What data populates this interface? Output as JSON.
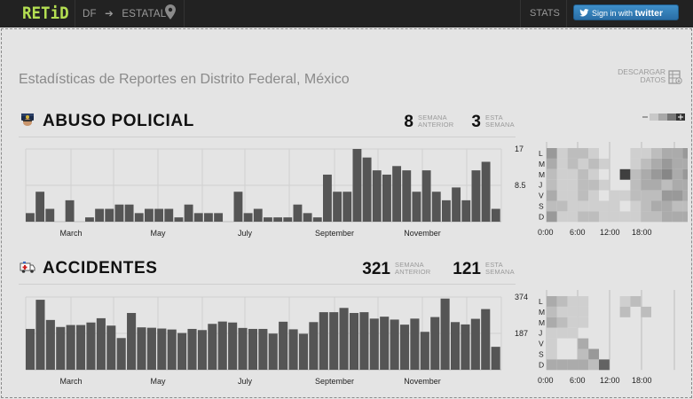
{
  "nav": {
    "logo": "RETiD",
    "region": "DF",
    "arrow": "➔",
    "level": "ESTATAL",
    "stats": "STATS",
    "twitter_prefix": "Sign in with",
    "twitter_brand": "twitter"
  },
  "page": {
    "title": "Estadísticas de Reportes en Distrito Federal, México",
    "download_line1": "DESCARGAR",
    "download_line2": "DATOS"
  },
  "colors": {
    "accent": "#b4df52",
    "bar": "#555555",
    "twitter": "#2f7fbf"
  },
  "sections": [
    {
      "title": "ABUSO POLICIAL",
      "icon": "police-icon",
      "prev_value": "8",
      "prev_label1": "SEMANA",
      "prev_label2": "ANTERIOR",
      "curr_value": "3",
      "curr_label1": "ESTA",
      "curr_label2": "SEMANA",
      "ymax_label": "17",
      "ymid_label": "8.5",
      "months": [
        "March",
        "May",
        "July",
        "September",
        "November"
      ],
      "days": [
        "L",
        "M",
        "M",
        "J",
        "V",
        "S",
        "D"
      ],
      "hours": [
        "0:00",
        "6:00",
        "12:00",
        "18:00"
      ]
    },
    {
      "title": "ACCIDENTES",
      "icon": "ambulance-icon",
      "prev_value": "321",
      "prev_label1": "SEMANA",
      "prev_label2": "ANTERIOR",
      "curr_value": "121",
      "curr_label1": "ESTA",
      "curr_label2": "SEMANA",
      "ymax_label": "374",
      "ymid_label": "187",
      "months": [
        "March",
        "May",
        "July",
        "September",
        "November"
      ],
      "days": [
        "L",
        "M",
        "M",
        "J",
        "V",
        "S",
        "D"
      ],
      "hours": [
        "0:00",
        "6:00",
        "12:00",
        "18:00"
      ]
    }
  ],
  "chart_data": [
    {
      "type": "bar",
      "title": "ABUSO POLICIAL",
      "ylim": [
        0,
        17
      ],
      "ytick_labels": [
        "17",
        "8.5"
      ],
      "xtick_labels": [
        "March",
        "May",
        "July",
        "September",
        "November"
      ],
      "values": [
        2,
        7,
        3,
        0,
        5,
        0,
        1,
        3,
        3,
        4,
        4,
        2,
        3,
        3,
        3,
        1,
        4,
        2,
        2,
        2,
        0,
        7,
        2,
        3,
        1,
        1,
        1,
        4,
        2,
        1,
        11,
        7,
        7,
        17,
        15,
        12,
        11,
        13,
        12,
        7,
        12,
        7,
        5,
        8,
        5,
        12,
        14,
        3
      ]
    },
    {
      "type": "bar",
      "title": "ACCIDENTES",
      "ylim": [
        0,
        374
      ],
      "ytick_labels": [
        "374",
        "187"
      ],
      "xtick_labels": [
        "March",
        "May",
        "July",
        "September",
        "November"
      ],
      "values": [
        210,
        360,
        256,
        220,
        230,
        230,
        243,
        265,
        227,
        163,
        292,
        218,
        216,
        212,
        207,
        189,
        210,
        204,
        236,
        248,
        243,
        215,
        210,
        210,
        186,
        247,
        208,
        185,
        245,
        296,
        296,
        318,
        292,
        296,
        263,
        273,
        258,
        232,
        263,
        195,
        271,
        366,
        245,
        233,
        262,
        312,
        118
      ]
    },
    {
      "type": "heatmap",
      "title": "ABUSO POLICIAL hour/day",
      "rows": [
        "L",
        "M",
        "M",
        "J",
        "V",
        "S",
        "D"
      ],
      "values": [
        [
          0.4,
          0.1,
          0.2,
          0.2,
          0.1,
          0,
          0,
          0,
          0.1,
          0.1,
          0.2,
          0.3,
          0.3,
          0.4,
          0.3,
          0.2,
          0.3,
          0.1,
          0.3
        ],
        [
          0.3,
          0.1,
          0.2,
          0.1,
          0.2,
          0.1,
          0,
          0,
          0.1,
          0.2,
          0.3,
          0.4,
          0.3,
          0.3,
          0.4,
          0.2,
          0.3,
          0.1,
          0.2
        ],
        [
          0.2,
          0.1,
          0.1,
          0.2,
          0.1,
          0,
          0,
          0.9,
          0.2,
          0.3,
          0.4,
          0.5,
          0.3,
          0.4,
          0.2,
          0.3,
          0.3,
          0.2,
          0.2
        ],
        [
          0.2,
          0.1,
          0.1,
          0.2,
          0.2,
          0.1,
          0,
          0,
          0.2,
          0.3,
          0.3,
          0.2,
          0.3,
          0.3,
          0.4,
          0.2,
          0.3,
          0.2,
          0.2
        ],
        [
          0.3,
          0.1,
          0.1,
          0.2,
          0.1,
          0,
          0.1,
          0.1,
          0.2,
          0.2,
          0.2,
          0.4,
          0.4,
          0.3,
          0.5,
          0.3,
          0.4,
          0.1,
          0.2
        ],
        [
          0.2,
          0.2,
          0.1,
          0.1,
          0.1,
          0.1,
          0.1,
          0,
          0.1,
          0.2,
          0.3,
          0.3,
          0.2,
          0.2,
          0.3,
          0.3,
          0.3,
          0.2,
          0.2
        ],
        [
          0.4,
          0.1,
          0.1,
          0.2,
          0.2,
          0.1,
          0.1,
          0.1,
          0.1,
          0.2,
          0.2,
          0.3,
          0.3,
          0.3,
          0.3,
          0.2,
          0.2,
          0.1,
          0.3
        ]
      ]
    },
    {
      "type": "heatmap",
      "title": "ACCIDENTES hour/day",
      "rows": [
        "L",
        "M",
        "M",
        "J",
        "V",
        "S",
        "D"
      ],
      "values": [
        [
          0.3,
          0.2,
          0.1,
          0.1,
          0,
          0,
          0,
          0.1,
          0.2,
          0,
          0,
          0,
          0,
          0,
          0,
          0,
          0.1,
          0.3,
          0.3
        ],
        [
          0.2,
          0.1,
          0.1,
          0.1,
          0,
          0,
          0,
          0.2,
          0,
          0.2,
          0,
          0,
          0,
          0,
          0,
          0,
          0,
          0,
          0.4
        ],
        [
          0.3,
          0.2,
          0.1,
          0.1,
          0,
          0,
          0,
          0,
          0,
          0,
          0,
          0,
          0,
          0,
          0,
          0,
          0,
          0,
          0.1
        ],
        [
          0.1,
          0.1,
          0.1,
          0,
          0,
          0,
          0,
          0,
          0,
          0,
          0,
          0,
          0,
          0,
          0,
          0.6,
          0,
          0,
          0.1
        ],
        [
          0.1,
          0,
          0,
          0.3,
          0,
          0,
          0,
          0,
          0,
          0,
          0,
          0,
          0,
          0,
          0,
          0,
          0,
          0,
          0.1
        ],
        [
          0.1,
          0,
          0,
          0.2,
          0.4,
          0,
          0,
          0,
          0,
          0,
          0,
          0,
          0,
          0,
          0,
          0,
          0,
          0,
          0.3
        ],
        [
          0.3,
          0.3,
          0.3,
          0.3,
          0.2,
          0.7,
          0,
          0,
          0,
          0,
          0,
          0,
          0,
          0,
          0,
          0,
          0.6,
          0.8,
          0.3
        ]
      ]
    }
  ]
}
